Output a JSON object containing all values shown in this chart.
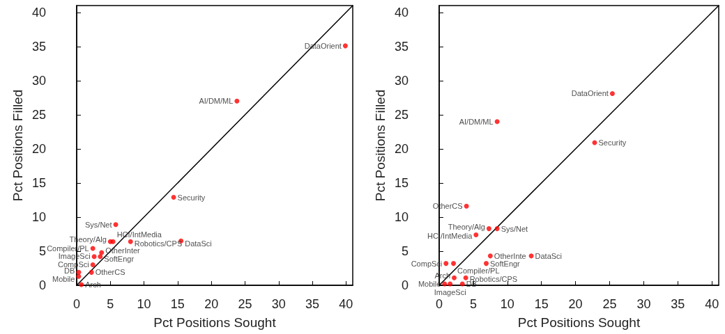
{
  "chart_data": [
    {
      "type": "scatter",
      "xlabel": "Pct Positions Sought",
      "ylabel": "Pct Positions Filled",
      "xlim": [
        0,
        41
      ],
      "ylim": [
        0,
        41
      ],
      "xticks": [
        0,
        5,
        10,
        15,
        20,
        25,
        30,
        35,
        40
      ],
      "yticks": [
        0,
        5,
        10,
        15,
        20,
        25,
        30,
        35,
        40
      ],
      "marker": "circle",
      "series": [
        {
          "type": "line",
          "color": "#000000",
          "marker": "none",
          "line_style": "solid",
          "x": [
            0,
            41
          ],
          "values": [
            0,
            41
          ]
        },
        {
          "type": "scatter",
          "color": "#ff0000",
          "x": [
            39.9,
            23.8,
            14.4,
            5.8,
            5.0,
            5.4,
            8.0,
            15.5,
            2.4,
            3.7,
            2.6,
            3.5,
            2.4,
            2.2,
            0.3,
            0.3,
            0.7
          ],
          "values": [
            35.1,
            27.0,
            12.9,
            8.9,
            6.4,
            6.4,
            6.4,
            6.5,
            5.4,
            4.8,
            4.2,
            4.2,
            3.0,
            1.9,
            1.9,
            1.3,
            0.1
          ],
          "value_labels": [
            "DataOrient",
            "AI/DM/ML",
            "Security",
            "Sys/Net",
            "Theory/Alg",
            "HCI/IntMedia",
            "Robotics/CPS",
            "DataSci",
            "Compiler/PL",
            "OtherInter",
            "ImageSci",
            "SoftEngr",
            "CompSci",
            "OtherCS",
            "DB",
            "Mobile",
            "Arch"
          ]
        }
      ]
    },
    {
      "type": "scatter",
      "xlabel": "Pct Positions Sought",
      "ylabel": "Pct Positions Filled",
      "xlim": [
        0,
        41
      ],
      "ylim": [
        0,
        41
      ],
      "xticks": [
        0,
        5,
        10,
        15,
        20,
        25,
        30,
        35,
        40
      ],
      "yticks": [
        0,
        5,
        10,
        15,
        20,
        25,
        30,
        35,
        40
      ],
      "marker": "circle",
      "series": [
        {
          "type": "line",
          "color": "#000000",
          "marker": "none",
          "line_style": "solid",
          "x": [
            0,
            41
          ],
          "values": [
            0,
            41
          ]
        },
        {
          "type": "scatter",
          "color": "#ff0000",
          "x": [
            25.4,
            8.5,
            22.8,
            4.0,
            7.3,
            8.5,
            5.4,
            7.5,
            13.5,
            1.0,
            2.1,
            6.9,
            2.2,
            3.9,
            0.8,
            3.4,
            1.6
          ],
          "values": [
            28.1,
            24.0,
            20.9,
            11.6,
            8.3,
            8.3,
            7.4,
            4.3,
            4.3,
            3.2,
            3.2,
            3.2,
            1.1,
            1.1,
            0.2,
            0.2,
            0.2
          ],
          "value_labels": [
            "DataOrient",
            "AI/DM/ML",
            "Security",
            "OtherCS",
            "Theory/Alg",
            "Sys/Net",
            "HCI/IntMedia",
            "OtherInte",
            "DataSci",
            "CompSci",
            "Compiler/PL",
            "SoftEngr",
            "Arch",
            "Robotics/CPS",
            "Mobile",
            "DB",
            "ImageSci"
          ]
        }
      ]
    }
  ]
}
